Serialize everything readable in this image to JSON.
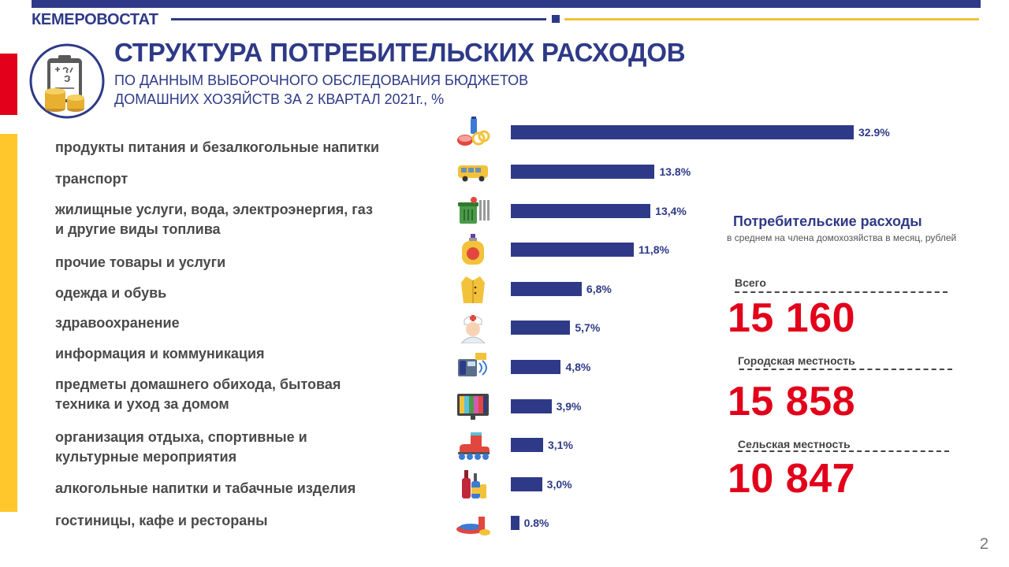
{
  "header": {
    "brand": "КЕМЕРОВОСТАТ",
    "title": "СТРУКТУРА ПОТРЕБИТЕЛЬСКИХ РАСХОДОВ",
    "subtitle": "ПО ДАННЫМ  ВЫБОРОЧНОГО  ОБСЛЕДОВАНИЯ  БЮДЖЕТОВ\nДОМАШНИХ  ХОЗЯЙСТВ   ЗА 2 КВАРТАЛ  2021г., %"
  },
  "colors": {
    "navy": "#2e3a87",
    "red": "#e2001a",
    "yellow": "#ffc72c"
  },
  "chart_data": {
    "type": "bar",
    "orientation": "horizontal",
    "categories": [
      "продукты питания и безалкогольные напитки",
      "транспорт",
      "жилищные услуги, вода, электроэнергия, газ\nи другие виды топлива",
      "прочие товары и услуги",
      "одежда и обувь",
      "здравоохранение",
      "информация и коммуникация",
      "предметы домашнего обихода, бытовая\nтехника и уход за домом",
      "организация отдыха, спортивные и\nкультурные мероприятия",
      "алкогольные напитки и табачные изделия",
      "гостиницы, кафе и рестораны"
    ],
    "values": [
      32.9,
      13.8,
      13.4,
      11.8,
      6.8,
      5.7,
      4.8,
      3.9,
      3.1,
      3.0,
      0.8
    ],
    "value_labels": [
      "32.9%",
      "13.8%",
      "13,4%",
      "11,8%",
      "6,8%",
      "5,7%",
      "4,8%",
      "3,9%",
      "3,1%",
      "3,0%",
      "0.8%"
    ],
    "icons": [
      "groceries-icon",
      "bus-icon",
      "utilities-icon",
      "perfume-icon",
      "coat-icon",
      "nurse-icon",
      "phone-icon",
      "tv-icon",
      "roller-skate-icon",
      "bottles-icon",
      "dinner-plate-icon"
    ],
    "xlim": [
      0,
      32.9
    ]
  },
  "spending_panel": {
    "title": "Потребительские расходы",
    "subtitle": "в среднем на члена домохозяйства  в месяц, рублей",
    "stats": [
      {
        "label": "Всего",
        "value": "15 160"
      },
      {
        "label": "Городская местность",
        "value": "15 858"
      },
      {
        "label": "Сельская местность",
        "value": "10 847"
      }
    ]
  },
  "page_number": "2"
}
